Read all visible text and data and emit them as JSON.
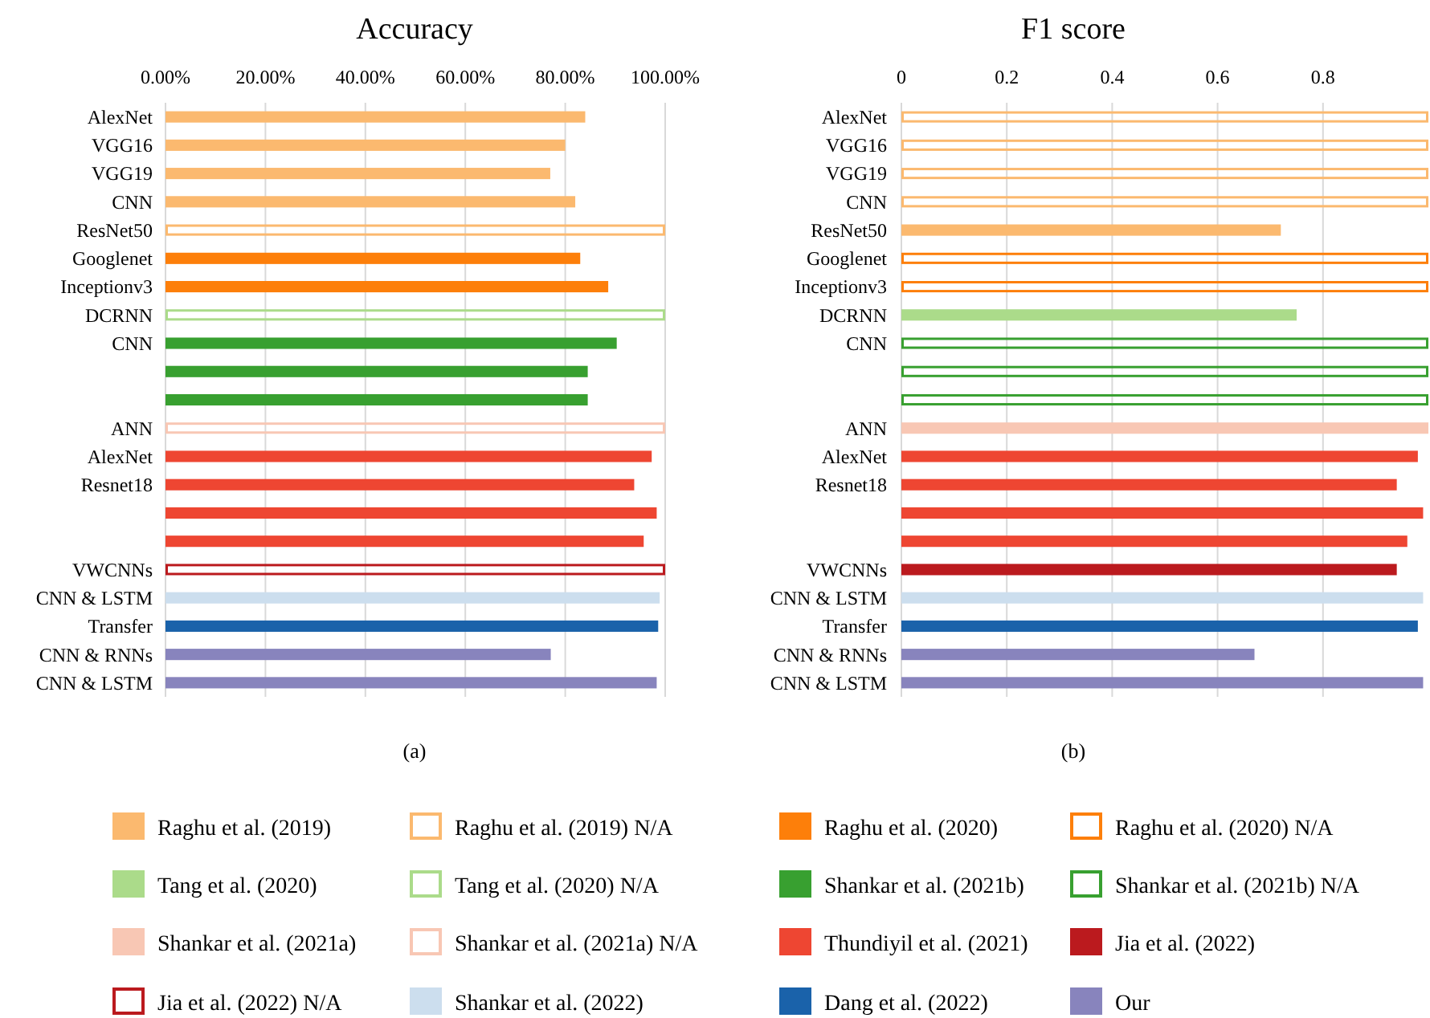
{
  "chart_data": [
    {
      "type": "bar",
      "orientation": "horizontal",
      "title": "Accuracy",
      "annotations": [
        "(a)"
      ],
      "grid": "x",
      "legend": "bottom",
      "categories": [
        "AlexNet",
        "VGG16",
        "VGG19",
        "CNN",
        "ResNet50",
        "Googlenet",
        "Inceptionv3",
        "DCRNN",
        "CNN",
        null,
        null,
        "ANN",
        "AlexNet",
        "Resnet18",
        null,
        null,
        "VWCNNs",
        "CNN & LSTM",
        "Transfer",
        "CNN & RNNs",
        "CNN & LSTM"
      ],
      "xlim": [
        0,
        100
      ],
      "xticks": [
        {
          "value": 0,
          "label": "0.00%"
        },
        {
          "value": 20,
          "label": "20.00%"
        },
        {
          "value": 40,
          "label": "40.00%"
        },
        {
          "value": 60,
          "label": "60.00%"
        },
        {
          "value": 80,
          "label": "80.00%"
        },
        {
          "value": 100,
          "label": "100.00%"
        }
      ],
      "series": [
        {
          "name": "Raghu et al. (2019)",
          "color": "#fbb96f",
          "values": [
            84,
            80,
            77,
            82,
            null,
            null,
            null,
            null,
            null,
            null,
            null,
            null,
            null,
            null,
            null,
            null,
            null,
            null,
            null,
            null,
            null
          ]
        },
        {
          "name": "Raghu et al. (2019) N/A",
          "color": "#fbb96f",
          "line_style": "solid",
          "values": [
            null,
            null,
            null,
            null,
            100,
            null,
            null,
            null,
            null,
            null,
            null,
            null,
            null,
            null,
            null,
            null,
            null,
            null,
            null,
            null,
            null
          ]
        },
        {
          "name": "Raghu et al. (2020)",
          "color": "#fd7f0a",
          "values": [
            null,
            null,
            null,
            null,
            null,
            83,
            88.6,
            null,
            null,
            null,
            null,
            null,
            null,
            null,
            null,
            null,
            null,
            null,
            null,
            null,
            null
          ]
        },
        {
          "name": "Raghu et al. (2020) N/A",
          "color": "#fd7f0a",
          "line_style": "solid",
          "values": [
            null,
            null,
            null,
            null,
            null,
            null,
            null,
            null,
            null,
            null,
            null,
            null,
            null,
            null,
            null,
            null,
            null,
            null,
            null,
            null,
            null
          ]
        },
        {
          "name": "Tang et al. (2020)",
          "color": "#abdb8a",
          "values": [
            null,
            null,
            null,
            null,
            null,
            null,
            null,
            null,
            null,
            null,
            null,
            null,
            null,
            null,
            null,
            null,
            null,
            null,
            null,
            null,
            null
          ]
        },
        {
          "name": "Tang et al. (2020) N/A",
          "color": "#abdb8a",
          "line_style": "solid",
          "values": [
            null,
            null,
            null,
            null,
            null,
            null,
            null,
            100,
            null,
            null,
            null,
            null,
            null,
            null,
            null,
            null,
            null,
            null,
            null,
            null,
            null
          ]
        },
        {
          "name": "Shankar et al. (2021b)",
          "color": "#38a030",
          "values": [
            null,
            null,
            null,
            null,
            null,
            null,
            null,
            null,
            90.3,
            84.5,
            84.5,
            null,
            null,
            null,
            null,
            null,
            null,
            null,
            null,
            null,
            null
          ]
        },
        {
          "name": "Shankar et al. (2021b) N/A",
          "color": "#38a030",
          "line_style": "solid",
          "values": [
            null,
            null,
            null,
            null,
            null,
            null,
            null,
            null,
            null,
            null,
            null,
            null,
            null,
            null,
            null,
            null,
            null,
            null,
            null,
            null,
            null
          ]
        },
        {
          "name": "Shankar et al. (2021a)",
          "color": "#f8c7b4",
          "values": [
            null,
            null,
            null,
            null,
            null,
            null,
            null,
            null,
            null,
            null,
            null,
            null,
            null,
            null,
            null,
            null,
            null,
            null,
            null,
            null,
            null
          ]
        },
        {
          "name": "Shankar et al. (2021a) N/A",
          "color": "#f8c7b4",
          "line_style": "solid",
          "values": [
            null,
            null,
            null,
            null,
            null,
            null,
            null,
            null,
            null,
            null,
            null,
            100,
            null,
            null,
            null,
            null,
            null,
            null,
            null,
            null,
            null
          ]
        },
        {
          "name": "Thundiyil et al. (2021)",
          "color": "#ee4632",
          "values": [
            null,
            null,
            null,
            null,
            null,
            null,
            null,
            null,
            null,
            null,
            null,
            null,
            97.3,
            93.8,
            98.3,
            95.7,
            null,
            null,
            null,
            null,
            null
          ]
        },
        {
          "name": "Jia et al. (2022)",
          "color": "#bb1a1e",
          "values": [
            null,
            null,
            null,
            null,
            null,
            null,
            null,
            null,
            null,
            null,
            null,
            null,
            null,
            null,
            null,
            null,
            null,
            null,
            null,
            null,
            null
          ]
        },
        {
          "name": "Jia et al. (2022) N/A",
          "color": "#bb1a1e",
          "line_style": "solid",
          "values": [
            null,
            null,
            null,
            null,
            null,
            null,
            null,
            null,
            null,
            null,
            null,
            null,
            null,
            null,
            null,
            null,
            100,
            null,
            null,
            null,
            null
          ]
        },
        {
          "name": "Shankar et al. (2022)",
          "color": "#ccdeee",
          "values": [
            null,
            null,
            null,
            null,
            null,
            null,
            null,
            null,
            null,
            null,
            null,
            null,
            null,
            null,
            null,
            null,
            null,
            98.9,
            null,
            null,
            null
          ]
        },
        {
          "name": "Dang et al. (2022)",
          "color": "#1a62aa",
          "values": [
            null,
            null,
            null,
            null,
            null,
            null,
            null,
            null,
            null,
            null,
            null,
            null,
            null,
            null,
            null,
            null,
            null,
            null,
            98.6,
            null,
            null
          ]
        },
        {
          "name": "Our",
          "color": "#8884bd",
          "values": [
            null,
            null,
            null,
            null,
            null,
            null,
            null,
            null,
            null,
            null,
            null,
            null,
            null,
            null,
            null,
            null,
            null,
            null,
            null,
            77.1,
            98.3
          ]
        }
      ]
    },
    {
      "type": "bar",
      "orientation": "horizontal",
      "title": "F1 score",
      "annotations": [
        "(b)"
      ],
      "grid": "x",
      "categories": [
        "AlexNet",
        "VGG16",
        "VGG19",
        "CNN",
        "ResNet50",
        "Googlenet",
        "Inceptionv3",
        "DCRNN",
        "CNN",
        null,
        null,
        "ANN",
        "AlexNet",
        "Resnet18",
        null,
        null,
        "VWCNNs",
        "CNN & LSTM",
        "Transfer",
        "CNN & RNNs",
        "CNN & LSTM"
      ],
      "xlim": [
        0,
        1
      ],
      "xticks": [
        0,
        0.2,
        0.4,
        0.6,
        0.8
      ],
      "series": [
        {
          "color": "#fbb96f",
          "values": [
            null,
            null,
            null,
            null,
            0.72,
            null,
            null,
            null,
            null,
            null,
            null,
            null,
            null,
            null,
            null,
            null,
            null,
            null,
            null,
            null,
            null
          ]
        },
        {
          "color": "#fbb96f",
          "line_style": "solid",
          "values": [
            1,
            1,
            1,
            1,
            null,
            null,
            null,
            null,
            null,
            null,
            null,
            null,
            null,
            null,
            null,
            null,
            null,
            null,
            null,
            null,
            null
          ]
        },
        {
          "color": "#fd7f0a",
          "line_style": "solid",
          "values": [
            null,
            null,
            null,
            null,
            null,
            1,
            1,
            null,
            null,
            null,
            null,
            null,
            null,
            null,
            null,
            null,
            null,
            null,
            null,
            null,
            null
          ]
        },
        {
          "color": "#abdb8a",
          "values": [
            null,
            null,
            null,
            null,
            null,
            null,
            null,
            0.75,
            null,
            null,
            null,
            null,
            null,
            null,
            null,
            null,
            null,
            null,
            null,
            null,
            null
          ]
        },
        {
          "color": "#38a030",
          "line_style": "solid",
          "values": [
            null,
            null,
            null,
            null,
            null,
            null,
            null,
            null,
            1,
            1,
            1,
            null,
            null,
            null,
            null,
            null,
            null,
            null,
            null,
            null,
            null
          ]
        },
        {
          "color": "#f8c7b4",
          "values": [
            null,
            null,
            null,
            null,
            null,
            null,
            null,
            null,
            null,
            null,
            null,
            1,
            null,
            null,
            null,
            null,
            null,
            null,
            null,
            null,
            null
          ]
        },
        {
          "color": "#ee4632",
          "values": [
            null,
            null,
            null,
            null,
            null,
            null,
            null,
            null,
            null,
            null,
            null,
            null,
            0.98,
            0.94,
            0.99,
            0.96,
            null,
            null,
            null,
            null,
            null
          ]
        },
        {
          "color": "#bb1a1e",
          "values": [
            null,
            null,
            null,
            null,
            null,
            null,
            null,
            null,
            null,
            null,
            null,
            null,
            null,
            null,
            null,
            null,
            0.94,
            null,
            null,
            null,
            null
          ]
        },
        {
          "color": "#ccdeee",
          "values": [
            null,
            null,
            null,
            null,
            null,
            null,
            null,
            null,
            null,
            null,
            null,
            null,
            null,
            null,
            null,
            null,
            null,
            0.99,
            null,
            null,
            null
          ]
        },
        {
          "color": "#1a62aa",
          "values": [
            null,
            null,
            null,
            null,
            null,
            null,
            null,
            null,
            null,
            null,
            null,
            null,
            null,
            null,
            null,
            null,
            null,
            null,
            0.98,
            null,
            null
          ]
        },
        {
          "color": "#8884bd",
          "values": [
            null,
            null,
            null,
            null,
            null,
            null,
            null,
            null,
            null,
            null,
            null,
            null,
            null,
            null,
            null,
            null,
            null,
            null,
            null,
            0.67,
            0.99
          ]
        }
      ]
    }
  ]
}
